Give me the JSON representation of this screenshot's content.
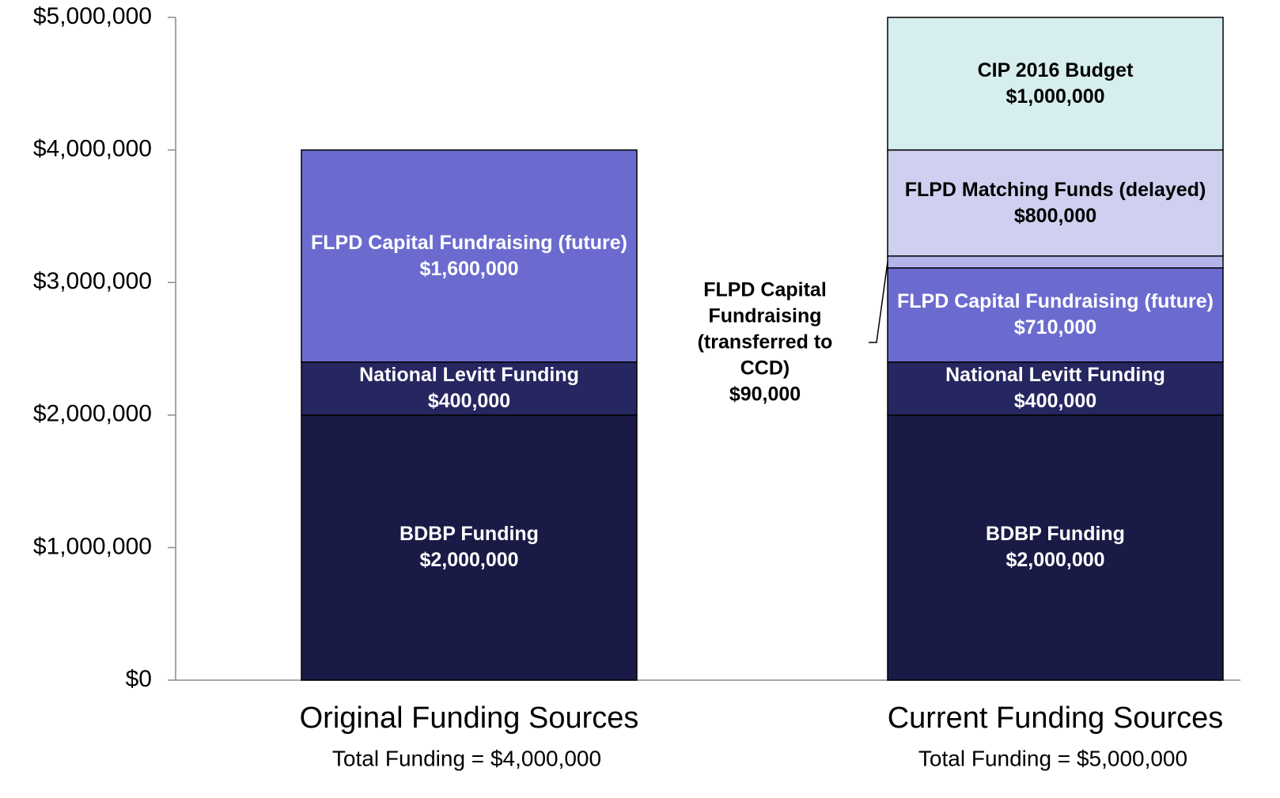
{
  "chart_data": {
    "type": "stacked_bar",
    "categories": [
      "Original Funding Sources",
      "Current Funding Sources"
    ],
    "category_subtitles": [
      "Total Funding = $4,000,000",
      "Total Funding = $5,000,000"
    ],
    "series": [
      {
        "name": "BDBP Funding",
        "color": "#1a1a46",
        "values": [
          2000000,
          2000000
        ],
        "value_labels": [
          "$2,000,000",
          "$2,000,000"
        ]
      },
      {
        "name": "National Levitt Funding",
        "color": "#262660",
        "values": [
          400000,
          400000
        ],
        "value_labels": [
          "$400,000",
          "$400,000"
        ]
      },
      {
        "name": "FLPD Capital Fundraising (future)",
        "color": "#6b6bcf",
        "values": [
          1600000,
          710000
        ],
        "value_labels": [
          "$1,600,000",
          "$710,000"
        ]
      },
      {
        "name": "FLPD Capital Fundraising (transferred to CCD)",
        "color": "#b3b3ea",
        "values": [
          null,
          90000
        ],
        "value_labels": [
          null,
          "$90,000"
        ]
      },
      {
        "name": "FLPD Matching Funds (delayed)",
        "color": "#cfcff0",
        "values": [
          null,
          800000
        ],
        "value_labels": [
          null,
          "$800,000"
        ]
      },
      {
        "name": "CIP 2016 Budget",
        "color": "#d6eeee",
        "values": [
          null,
          1000000
        ],
        "value_labels": [
          null,
          "$1,000,000"
        ]
      }
    ],
    "ylim": [
      0,
      5000000
    ],
    "yticks": [
      {
        "value": 0,
        "label": "$0"
      },
      {
        "value": 1000000,
        "label": "$1,000,000"
      },
      {
        "value": 2000000,
        "label": "$2,000,000"
      },
      {
        "value": 3000000,
        "label": "$3,000,000"
      },
      {
        "value": 4000000,
        "label": "$4,000,000"
      },
      {
        "value": 5000000,
        "label": "$5,000,000"
      }
    ],
    "grid": false
  }
}
